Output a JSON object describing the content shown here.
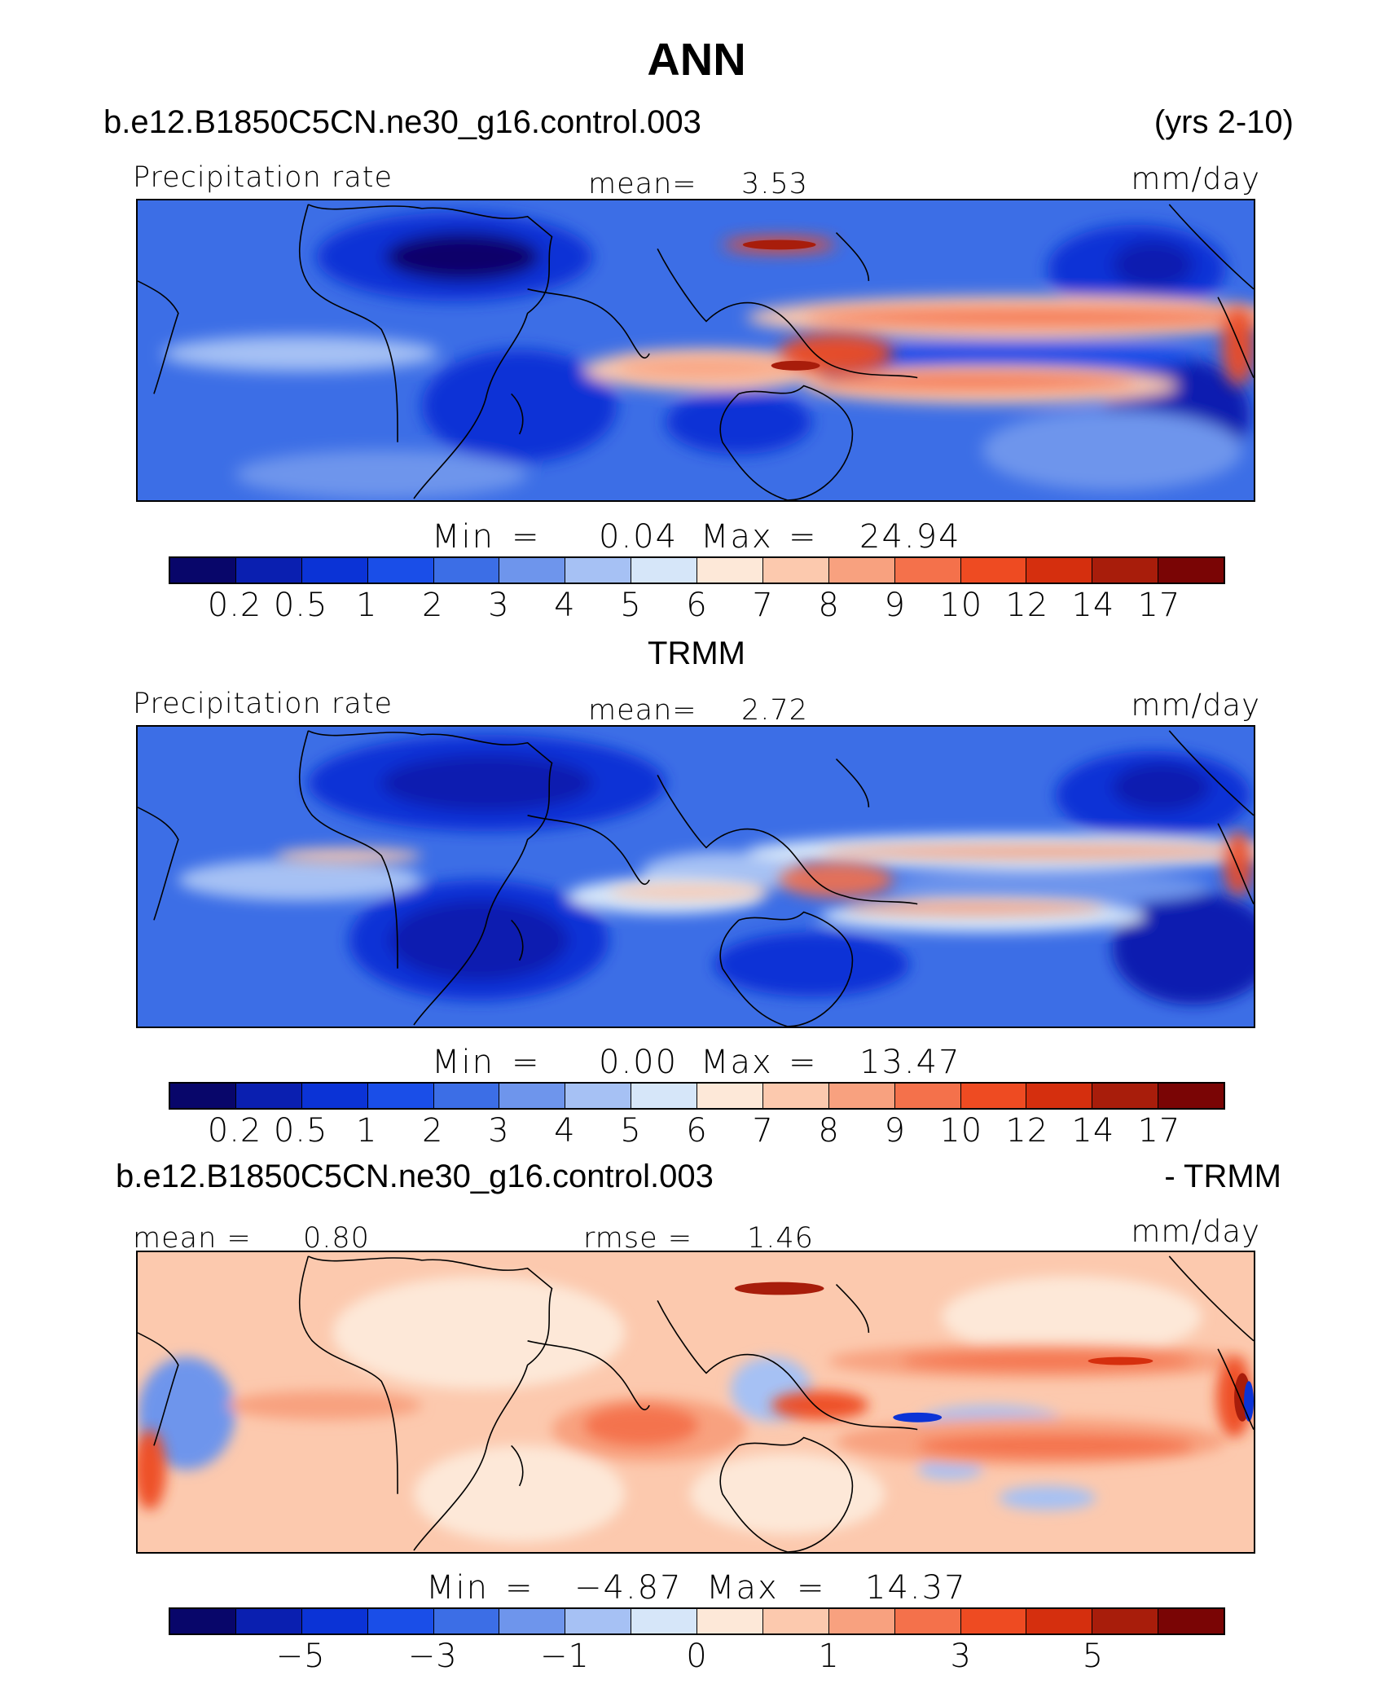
{
  "title": "ANN",
  "case_name": "b.e12.B1850C5CN.ne30_g16.control.003",
  "years": "(yrs 2-10)",
  "panels": [
    {
      "var_label": "Precipitation rate",
      "stat_label": "mean=",
      "stat_value": "3.53",
      "units": "mm/day",
      "min_label": "Min",
      "min_eq": "=",
      "min_value": "0.04",
      "max_label": "Max",
      "max_eq": "=",
      "max_value": "24.94",
      "colorbar_ticks": [
        "0.2",
        "0.5",
        "1",
        "2",
        "3",
        "4",
        "5",
        "6",
        "7",
        "8",
        "9",
        "10",
        "12",
        "14",
        "17"
      ]
    },
    {
      "subtitle": "TRMM",
      "var_label": "Precipitation rate",
      "stat_label": "mean=",
      "stat_value": "2.72",
      "units": "mm/day",
      "min_label": "Min",
      "min_eq": "=",
      "min_value": "0.00",
      "max_label": "Max",
      "max_eq": "=",
      "max_value": "13.47",
      "colorbar_ticks": [
        "0.2",
        "0.5",
        "1",
        "2",
        "3",
        "4",
        "5",
        "6",
        "7",
        "8",
        "9",
        "10",
        "12",
        "14",
        "17"
      ]
    },
    {
      "case_name": "b.e12.B1850C5CN.ne30_g16.control.003",
      "diff_label": "- TRMM",
      "mean_label": "mean =",
      "mean_value": "0.80",
      "rmse_label": "rmse =",
      "rmse_value": "1.46",
      "units": "mm/day",
      "min_label": "Min",
      "min_eq": "=",
      "min_value": "−4.87",
      "max_label": "Max",
      "max_eq": "=",
      "max_value": "14.37",
      "colorbar_ticks": [
        "−5",
        "−3",
        "−1",
        "0",
        "1",
        "3",
        "5"
      ]
    }
  ],
  "colors": {
    "precip_scale": [
      "#08066a",
      "#0a1fb0",
      "#0b33d6",
      "#1a4ee8",
      "#3c6ee6",
      "#6e95ec",
      "#a6c1f4",
      "#d6e6f9",
      "#fde8d8",
      "#fcc9ae",
      "#f8a17f",
      "#f4714b",
      "#ee4b22",
      "#d52f0e",
      "#a81d0b",
      "#7a0505"
    ],
    "diff_scale": [
      "#08066a",
      "#0a1fb0",
      "#0b33d6",
      "#1a4ee8",
      "#3c6ee6",
      "#6e95ec",
      "#a6c1f4",
      "#d6e6f9",
      "#fde8d8",
      "#fcc9ae",
      "#f8a17f",
      "#f4714b",
      "#ee4b22",
      "#d52f0e",
      "#a81d0b",
      "#7a0505"
    ]
  }
}
